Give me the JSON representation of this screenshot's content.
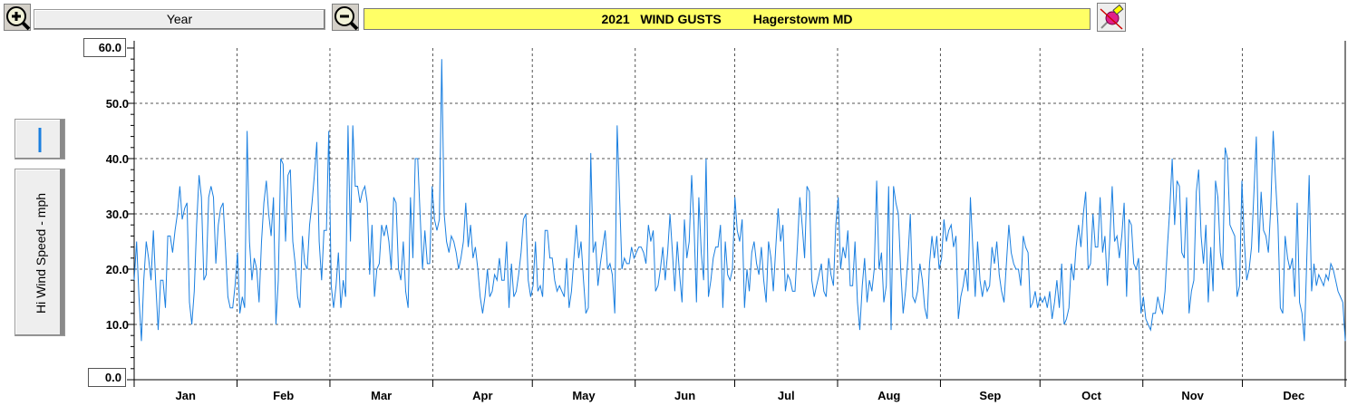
{
  "toolbar": {
    "zoom_in_icon": "zoom-in-icon",
    "period_label": "Year",
    "zoom_out_icon": "zoom-out-icon",
    "title": "2021   WIND GUSTS         Hagerstowm MD",
    "eraser_icon": "eraser-icon",
    "title_bg": "#ffff66"
  },
  "side": {
    "line_style_icon": "line-style-icon",
    "ylabel": "Hi Wind Speed - mph"
  },
  "chart_data": {
    "type": "line",
    "title": "2021   WIND GUSTS         Hagerstowm MD",
    "ylabel": "Hi Wind Speed - mph",
    "xlabel": "",
    "ylim": [
      0,
      60
    ],
    "grid": true,
    "line_color": "#1a7fe0",
    "yticks": [
      "60.0",
      "50.0",
      "40.0",
      "30.0",
      "20.0",
      "10.0",
      "0.0"
    ],
    "months": [
      "Jan",
      "Feb",
      "Mar",
      "Apr",
      "May",
      "Jun",
      "Jul",
      "Aug",
      "Sep",
      "Oct",
      "Nov",
      "Dec"
    ],
    "series": [
      {
        "values": [
          18,
          25,
          15,
          7,
          18,
          25,
          22,
          18,
          27,
          17,
          9,
          18,
          18,
          13,
          26,
          26,
          23,
          27,
          30,
          35,
          29,
          31,
          32,
          14,
          10,
          16,
          28,
          37,
          33,
          18,
          19,
          33,
          35,
          33,
          21,
          28,
          31,
          32,
          24,
          15,
          13,
          13,
          17,
          23,
          12,
          15,
          13,
          45,
          25,
          18,
          22,
          20,
          14,
          25,
          32,
          36,
          30,
          26,
          33,
          10,
          18,
          40,
          39,
          25,
          37,
          38,
          25,
          21,
          15,
          13,
          26,
          21,
          20,
          28,
          32,
          37,
          43,
          25,
          18,
          27,
          27,
          45,
          17,
          13,
          17,
          23,
          13,
          18,
          15,
          46,
          25,
          46,
          35,
          35,
          32,
          34,
          35,
          32,
          19,
          28,
          15,
          20,
          21,
          28,
          26,
          28,
          25,
          20,
          33,
          32,
          20,
          18,
          25,
          16,
          13,
          33,
          22,
          40,
          40,
          30,
          20,
          27,
          21,
          21,
          35,
          29,
          27,
          29,
          58,
          30,
          25,
          23,
          26,
          25,
          23,
          20,
          22,
          25,
          32,
          24,
          28,
          22,
          24,
          20,
          15,
          12,
          15,
          20,
          15,
          16,
          19,
          18,
          22,
          18,
          18,
          25,
          13,
          21,
          15,
          16,
          19,
          23,
          29,
          30,
          18,
          15,
          17,
          25,
          16,
          17,
          15,
          27,
          27,
          22,
          22,
          18,
          16,
          17,
          16,
          15,
          22,
          13,
          16,
          22,
          28,
          22,
          25,
          18,
          12,
          13,
          41,
          23,
          25,
          17,
          21,
          24,
          27,
          20,
          21,
          19,
          12,
          46,
          33,
          20,
          22,
          21,
          21,
          24,
          22,
          23,
          24,
          24,
          23,
          21,
          28,
          25,
          27,
          16,
          17,
          20,
          24,
          18,
          23,
          30,
          23,
          16,
          25,
          19,
          14,
          29,
          22,
          25,
          37,
          28,
          14,
          33,
          23,
          18,
          40,
          15,
          18,
          22,
          24,
          24,
          28,
          13,
          25,
          19,
          18,
          20,
          33,
          27,
          25,
          29,
          13,
          20,
          16,
          23,
          25,
          21,
          19,
          24,
          18,
          14,
          25,
          22,
          16,
          24,
          31,
          25,
          28,
          16,
          19,
          18,
          16,
          16,
          24,
          33,
          28,
          22,
          35,
          34,
          18,
          15,
          17,
          19,
          21,
          16,
          15,
          22,
          19,
          17,
          28,
          33,
          20,
          24,
          22,
          27,
          17,
          17,
          25,
          14,
          9,
          17,
          22,
          14,
          18,
          16,
          20,
          36,
          20,
          23,
          14,
          17,
          35,
          9,
          35,
          32,
          30,
          20,
          12,
          16,
          22,
          30,
          15,
          14,
          16,
          21,
          18,
          13,
          11,
          21,
          26,
          22,
          26,
          20,
          22,
          29,
          25,
          27,
          28,
          24,
          26,
          11,
          15,
          17,
          20,
          16,
          33,
          24,
          15,
          25,
          18,
          15,
          18,
          16,
          17,
          24,
          21,
          25,
          19,
          16,
          14,
          21,
          28,
          23,
          21,
          20,
          20,
          17,
          26,
          24,
          23,
          13,
          14,
          16,
          13,
          15,
          14,
          15,
          13,
          16,
          11,
          14,
          18,
          13,
          21,
          10,
          11,
          13,
          21,
          18,
          24,
          28,
          24,
          30,
          34,
          20,
          21,
          30,
          24,
          24,
          33,
          23,
          26,
          17,
          25,
          35,
          25,
          26,
          22,
          26,
          32,
          15,
          29,
          28,
          21,
          20,
          22,
          12,
          15,
          11,
          10,
          9,
          12,
          12,
          15,
          13,
          12,
          16,
          24,
          31,
          40,
          28,
          36,
          35,
          23,
          22,
          33,
          12,
          16,
          18,
          34,
          38,
          26,
          21,
          28,
          14,
          24,
          16,
          36,
          33,
          23,
          20,
          42,
          40,
          28,
          27,
          26,
          15,
          17,
          36,
          25,
          18,
          20,
          24,
          34,
          44,
          23,
          34,
          27,
          26,
          23,
          31,
          45,
          36,
          28,
          13,
          12,
          26,
          22,
          20,
          22,
          15,
          32,
          14,
          12,
          7,
          22,
          37,
          16,
          21,
          17,
          19,
          18,
          17,
          19,
          18,
          21,
          20,
          18,
          16,
          15,
          14,
          7
        ]
      }
    ]
  }
}
